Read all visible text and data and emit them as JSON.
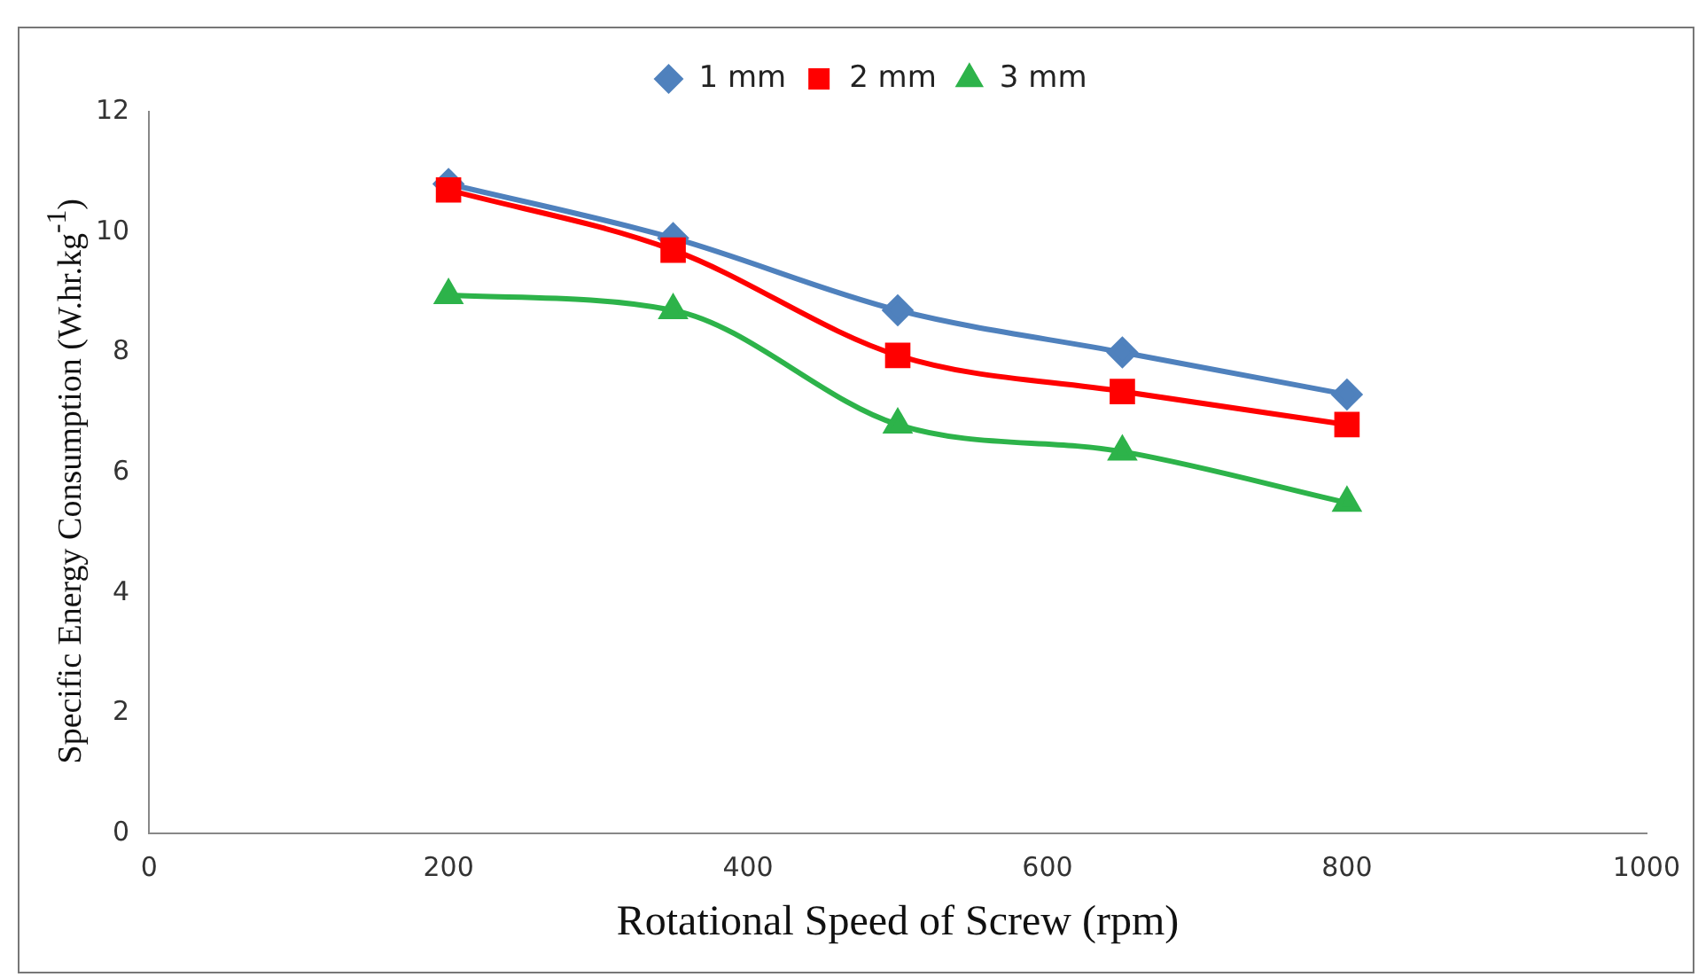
{
  "chart_data": {
    "type": "line",
    "xlabel": "Rotational Speed of Screw (rpm)",
    "ylabel": "Specific Energy Consumption (W.hr.kg$^{-1}$)",
    "x": [
      200,
      350,
      500,
      650,
      800
    ],
    "series": [
      {
        "name": "1 mm",
        "color": "#4f81bd",
        "marker": "diamond",
        "values": [
          10.8,
          9.9,
          8.7,
          8.0,
          7.3
        ]
      },
      {
        "name": "2 mm",
        "color": "#ff0000",
        "marker": "square",
        "values": [
          10.7,
          9.7,
          7.95,
          7.35,
          6.8
        ]
      },
      {
        "name": "3 mm",
        "color": "#2db34a",
        "marker": "triangle",
        "values": [
          8.95,
          8.7,
          6.8,
          6.35,
          5.5
        ]
      }
    ],
    "xlim": [
      0,
      1000
    ],
    "xticks": [
      0,
      200,
      400,
      600,
      800,
      1000
    ],
    "ylim": [
      0,
      12
    ],
    "yticks": [
      0,
      2,
      4,
      6,
      8,
      10,
      12
    ],
    "grid": false,
    "legend": "top"
  }
}
